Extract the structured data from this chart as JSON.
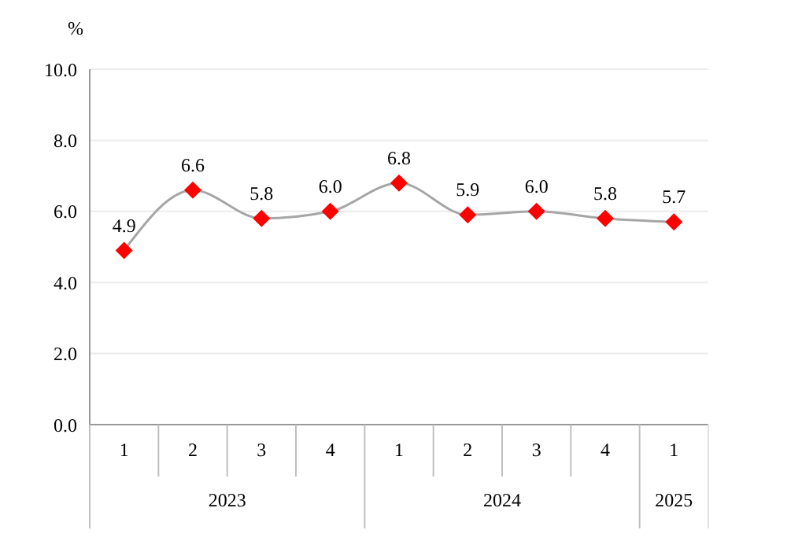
{
  "chart_data": {
    "type": "line",
    "ylabel": "%",
    "categories": [
      "1",
      "2",
      "3",
      "4",
      "1",
      "2",
      "3",
      "4",
      "1"
    ],
    "annotations": [
      "2023",
      "2024",
      "2025"
    ],
    "series": [
      {
        "color": "#ff0000",
        "values": [
          4.9,
          6.6,
          5.8,
          6.0,
          6.8,
          5.9,
          6.0,
          5.8,
          5.7
        ],
        "value_labels": [
          "4.9",
          "6.6",
          "5.8",
          "6.0",
          "6.8",
          "5.9",
          "6.0",
          "5.8",
          "5.7"
        ]
      }
    ],
    "ylim": [
      0,
      10
    ],
    "yticks": [
      {
        "value": 0,
        "label": "0.0"
      },
      {
        "value": 2,
        "label": "2.0"
      },
      {
        "value": 4,
        "label": "4.0"
      },
      {
        "value": 6,
        "label": "6.0"
      },
      {
        "value": 8,
        "label": "8.0"
      },
      {
        "value": 10,
        "label": "10.0"
      }
    ],
    "grid": "y",
    "marker": "diamond",
    "line_style": "solid"
  }
}
